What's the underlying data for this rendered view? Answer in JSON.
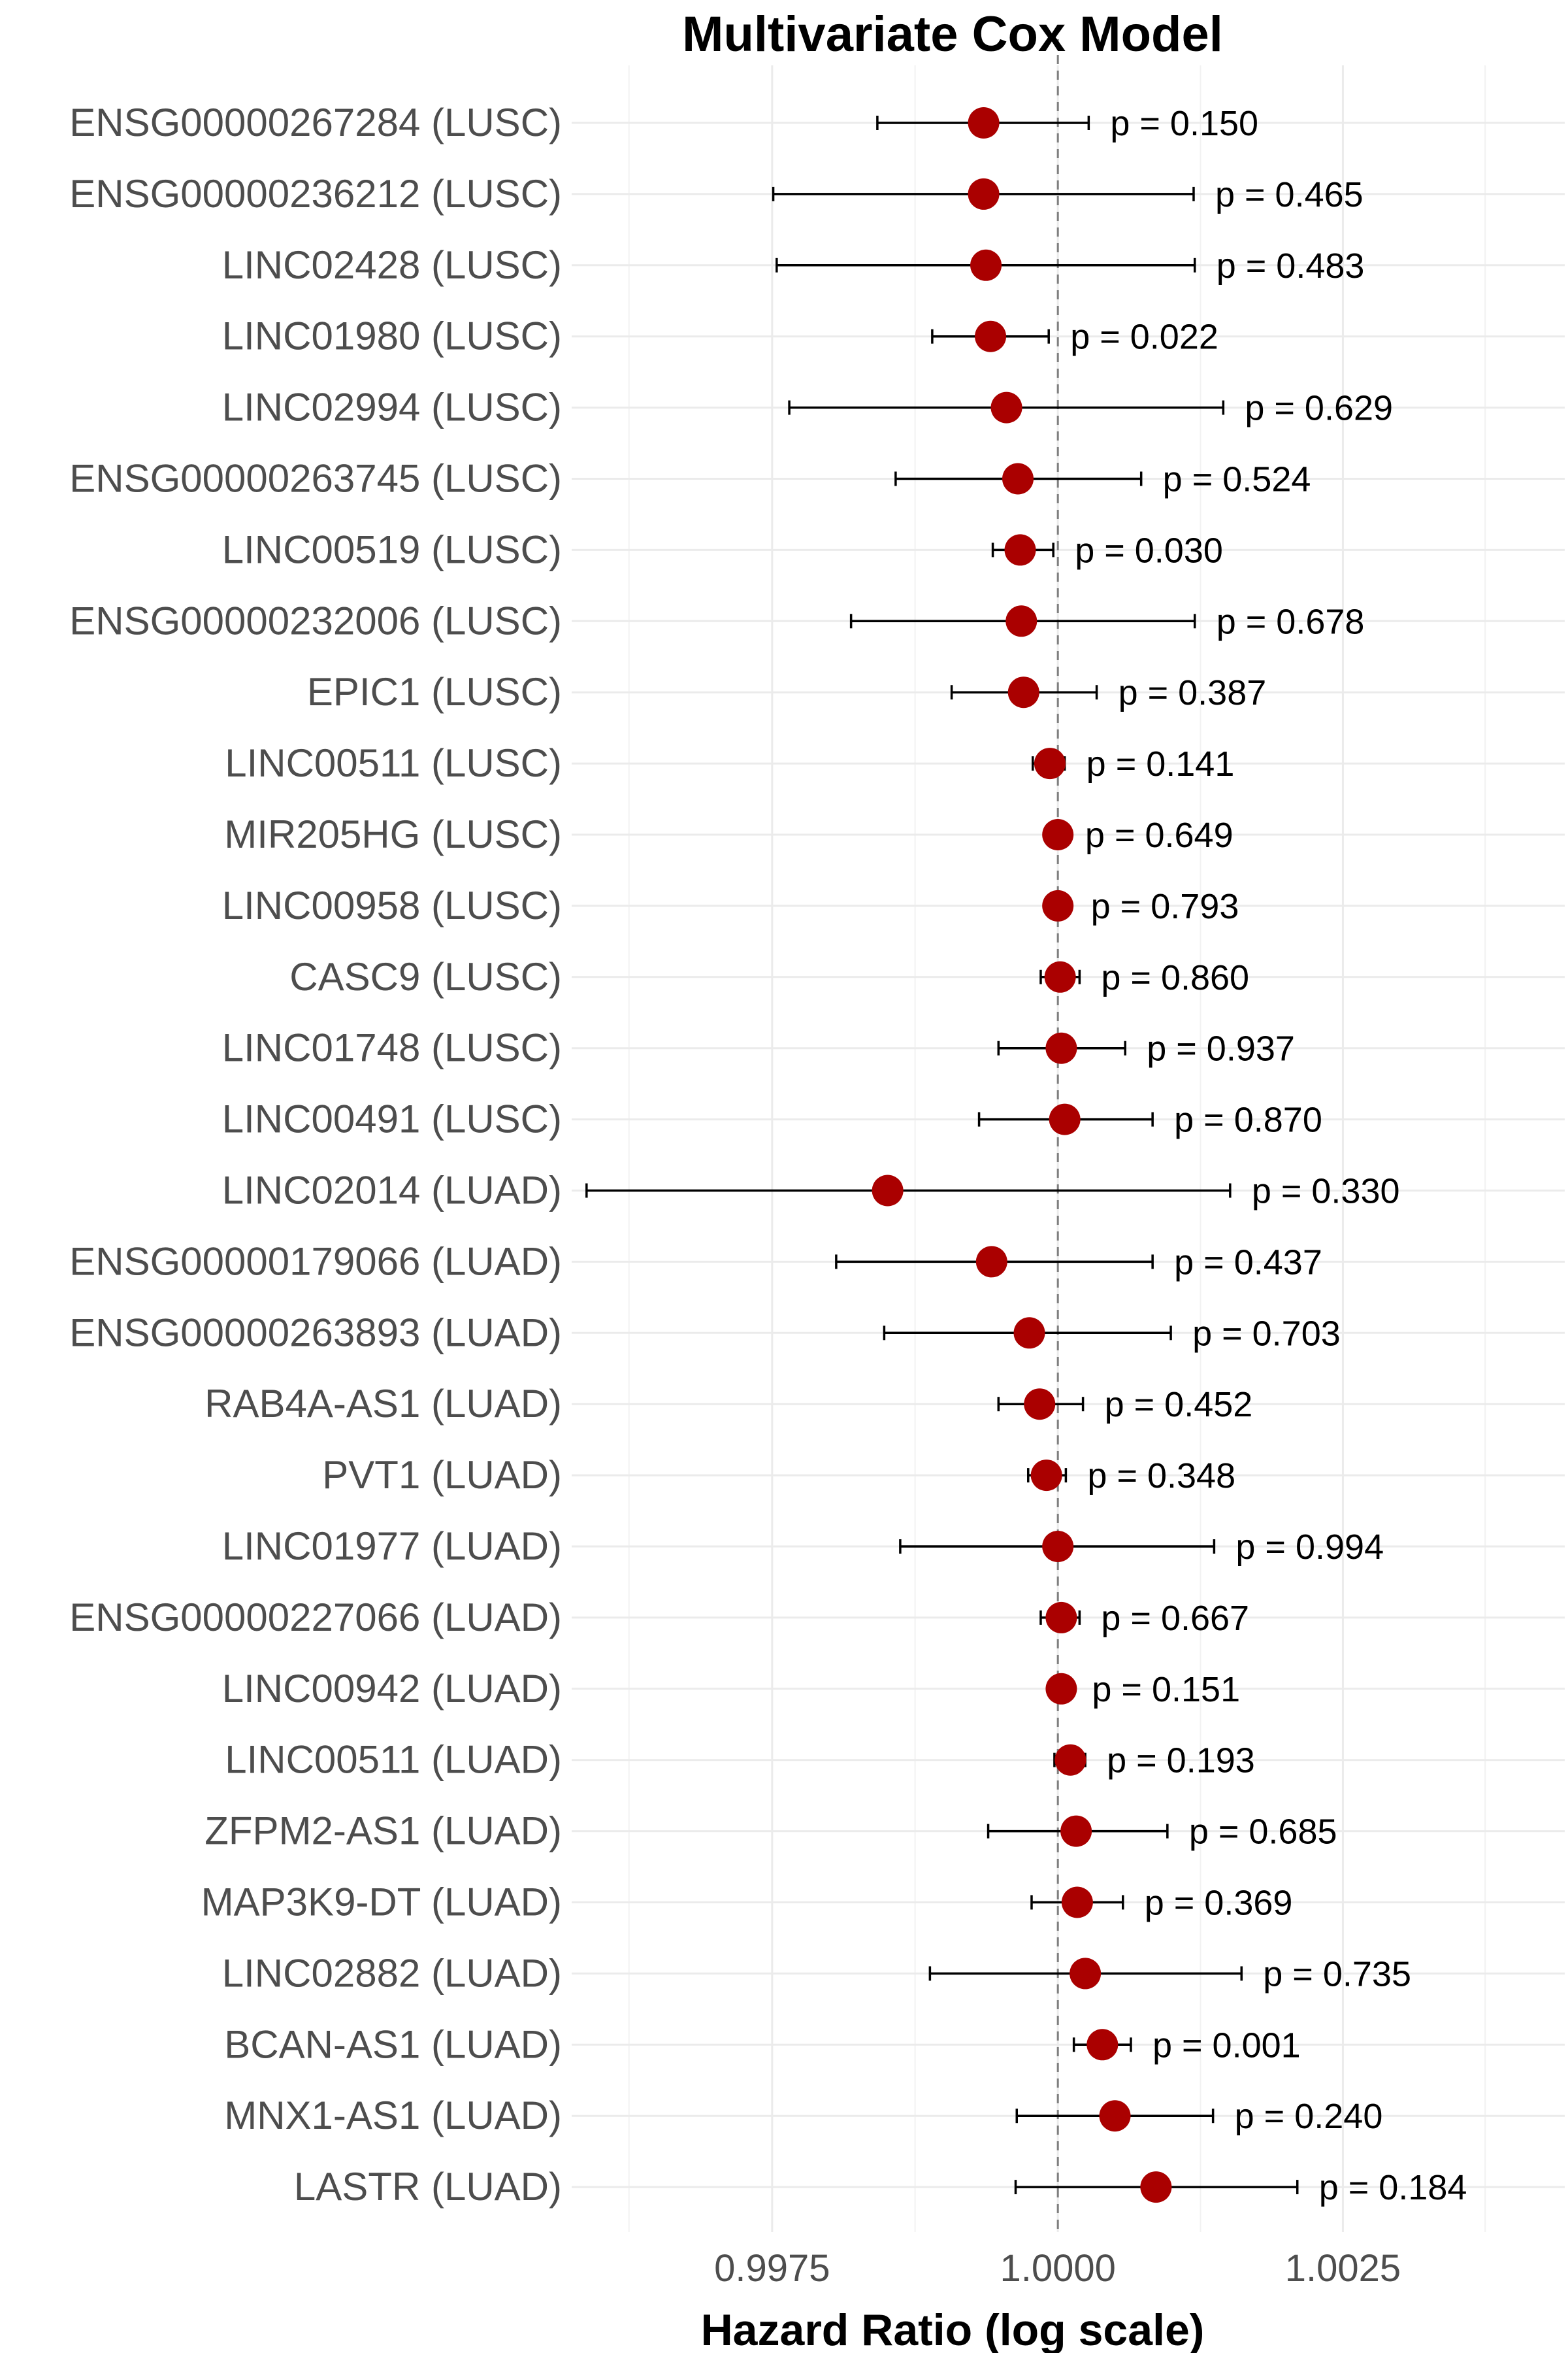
{
  "chart_data": {
    "type": "scatter",
    "subtype": "forest-plot",
    "title": "Multivariate Cox Model",
    "xlabel": "Hazard Ratio (log scale)",
    "ylabel": "",
    "x_scale": "log",
    "xlim": [
      0.99575,
      1.00445
    ],
    "x_ticks": [
      0.9975,
      1.0,
      1.0025
    ],
    "x_tick_labels": [
      "0.9975",
      "1.0000",
      "1.0025"
    ],
    "reference_line": 1.0,
    "grid": true,
    "point_color": "#aa0000",
    "rows": [
      {
        "label": "ENSG00000267284 (LUSC)",
        "hr": 0.99935,
        "lower": 0.99842,
        "upper": 1.00027,
        "p": "p = 0.150"
      },
      {
        "label": "ENSG00000236212 (LUSC)",
        "hr": 0.99935,
        "lower": 0.99751,
        "upper": 1.00119,
        "p": "p = 0.465"
      },
      {
        "label": "LINC02428 (LUSC)",
        "hr": 0.99937,
        "lower": 0.99754,
        "upper": 1.0012,
        "p": "p = 0.483"
      },
      {
        "label": "LINC01980 (LUSC)",
        "hr": 0.99941,
        "lower": 0.9989,
        "upper": 0.99992,
        "p": "p = 0.022"
      },
      {
        "label": "LINC02994 (LUSC)",
        "hr": 0.99955,
        "lower": 0.99765,
        "upper": 1.00145,
        "p": "p = 0.629"
      },
      {
        "label": "ENSG00000263745 (LUSC)",
        "hr": 0.99965,
        "lower": 0.99858,
        "upper": 1.00073,
        "p": "p = 0.524"
      },
      {
        "label": "LINC00519 (LUSC)",
        "hr": 0.99967,
        "lower": 0.99943,
        "upper": 0.99996,
        "p": "p = 0.030"
      },
      {
        "label": "ENSG00000232006 (LUSC)",
        "hr": 0.99968,
        "lower": 0.99819,
        "upper": 1.0012,
        "p": "p = 0.678"
      },
      {
        "label": "EPIC1 (LUSC)",
        "hr": 0.9997,
        "lower": 0.99907,
        "upper": 1.00034,
        "p": "p = 0.387"
      },
      {
        "label": "LINC00511 (LUSC)",
        "hr": 0.99993,
        "lower": 0.99978,
        "upper": 1.00006,
        "p": "p = 0.141"
      },
      {
        "label": "MIR205HG (LUSC)",
        "hr": 1.0,
        "lower": 0.99995,
        "upper": 1.00005,
        "p": "p = 0.649"
      },
      {
        "label": "LINC00958 (LUSC)",
        "hr": 1.0,
        "lower": 0.9999,
        "upper": 1.0001,
        "p": "p = 0.793"
      },
      {
        "label": "CASC9 (LUSC)",
        "hr": 1.00002,
        "lower": 0.99985,
        "upper": 1.00019,
        "p": "p = 0.860"
      },
      {
        "label": "LINC01748 (LUSC)",
        "hr": 1.00003,
        "lower": 0.99948,
        "upper": 1.00059,
        "p": "p = 0.937"
      },
      {
        "label": "LINC00491 (LUSC)",
        "hr": 1.00006,
        "lower": 0.99931,
        "upper": 1.00083,
        "p": "p = 0.870"
      },
      {
        "label": "LINC02014 (LUAD)",
        "hr": 0.99851,
        "lower": 0.99588,
        "upper": 1.00151,
        "p": "p = 0.330"
      },
      {
        "label": "ENSG00000179066 (LUAD)",
        "hr": 0.99942,
        "lower": 0.99806,
        "upper": 1.00083,
        "p": "p = 0.437"
      },
      {
        "label": "ENSG00000263893 (LUAD)",
        "hr": 0.99975,
        "lower": 0.99848,
        "upper": 1.00099,
        "p": "p = 0.703"
      },
      {
        "label": "RAB4A-AS1 (LUAD)",
        "hr": 0.99984,
        "lower": 0.99948,
        "upper": 1.00022,
        "p": "p = 0.452"
      },
      {
        "label": "PVT1 (LUAD)",
        "hr": 0.9999,
        "lower": 0.99974,
        "upper": 1.00007,
        "p": "p = 0.348"
      },
      {
        "label": "LINC01977 (LUAD)",
        "hr": 1.0,
        "lower": 0.99862,
        "upper": 1.00137,
        "p": "p = 0.994"
      },
      {
        "label": "ENSG00000227066 (LUAD)",
        "hr": 1.00003,
        "lower": 0.99985,
        "upper": 1.00019,
        "p": "p = 0.667"
      },
      {
        "label": "LINC00942 (LUAD)",
        "hr": 1.00003,
        "lower": 0.99995,
        "upper": 1.00011,
        "p": "p = 0.151"
      },
      {
        "label": "LINC00511 (LUAD)",
        "hr": 1.00011,
        "lower": 0.99997,
        "upper": 1.00024,
        "p": "p = 0.193"
      },
      {
        "label": "ZFPM2-AS1 (LUAD)",
        "hr": 1.00016,
        "lower": 0.99939,
        "upper": 1.00096,
        "p": "p = 0.685"
      },
      {
        "label": "MAP3K9-DT (LUAD)",
        "hr": 1.00017,
        "lower": 0.99977,
        "upper": 1.00057,
        "p": "p = 0.369"
      },
      {
        "label": "LINC02882 (LUAD)",
        "hr": 1.00024,
        "lower": 0.99888,
        "upper": 1.00161,
        "p": "p = 0.735"
      },
      {
        "label": "BCAN-AS1 (LUAD)",
        "hr": 1.00039,
        "lower": 1.00014,
        "upper": 1.00064,
        "p": "p = 0.001"
      },
      {
        "label": "MNX1-AS1 (LUAD)",
        "hr": 1.0005,
        "lower": 0.99964,
        "upper": 1.00136,
        "p": "p = 0.240"
      },
      {
        "label": "LASTR (LUAD)",
        "hr": 1.00086,
        "lower": 0.99963,
        "upper": 1.0021,
        "p": "p = 0.184"
      }
    ]
  }
}
